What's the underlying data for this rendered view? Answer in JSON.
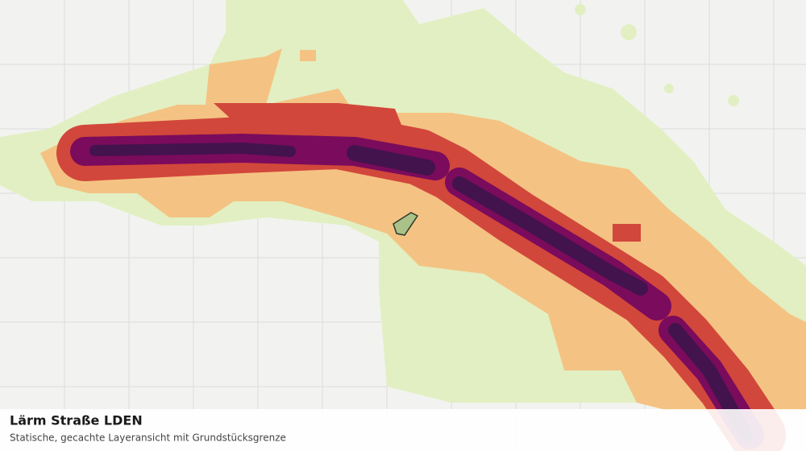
{
  "panel": {
    "title": "Lärm Straße LDEN",
    "subtitle": "Statische, gecachte Layeransicht mit Grundstücksgrenze"
  }
}
